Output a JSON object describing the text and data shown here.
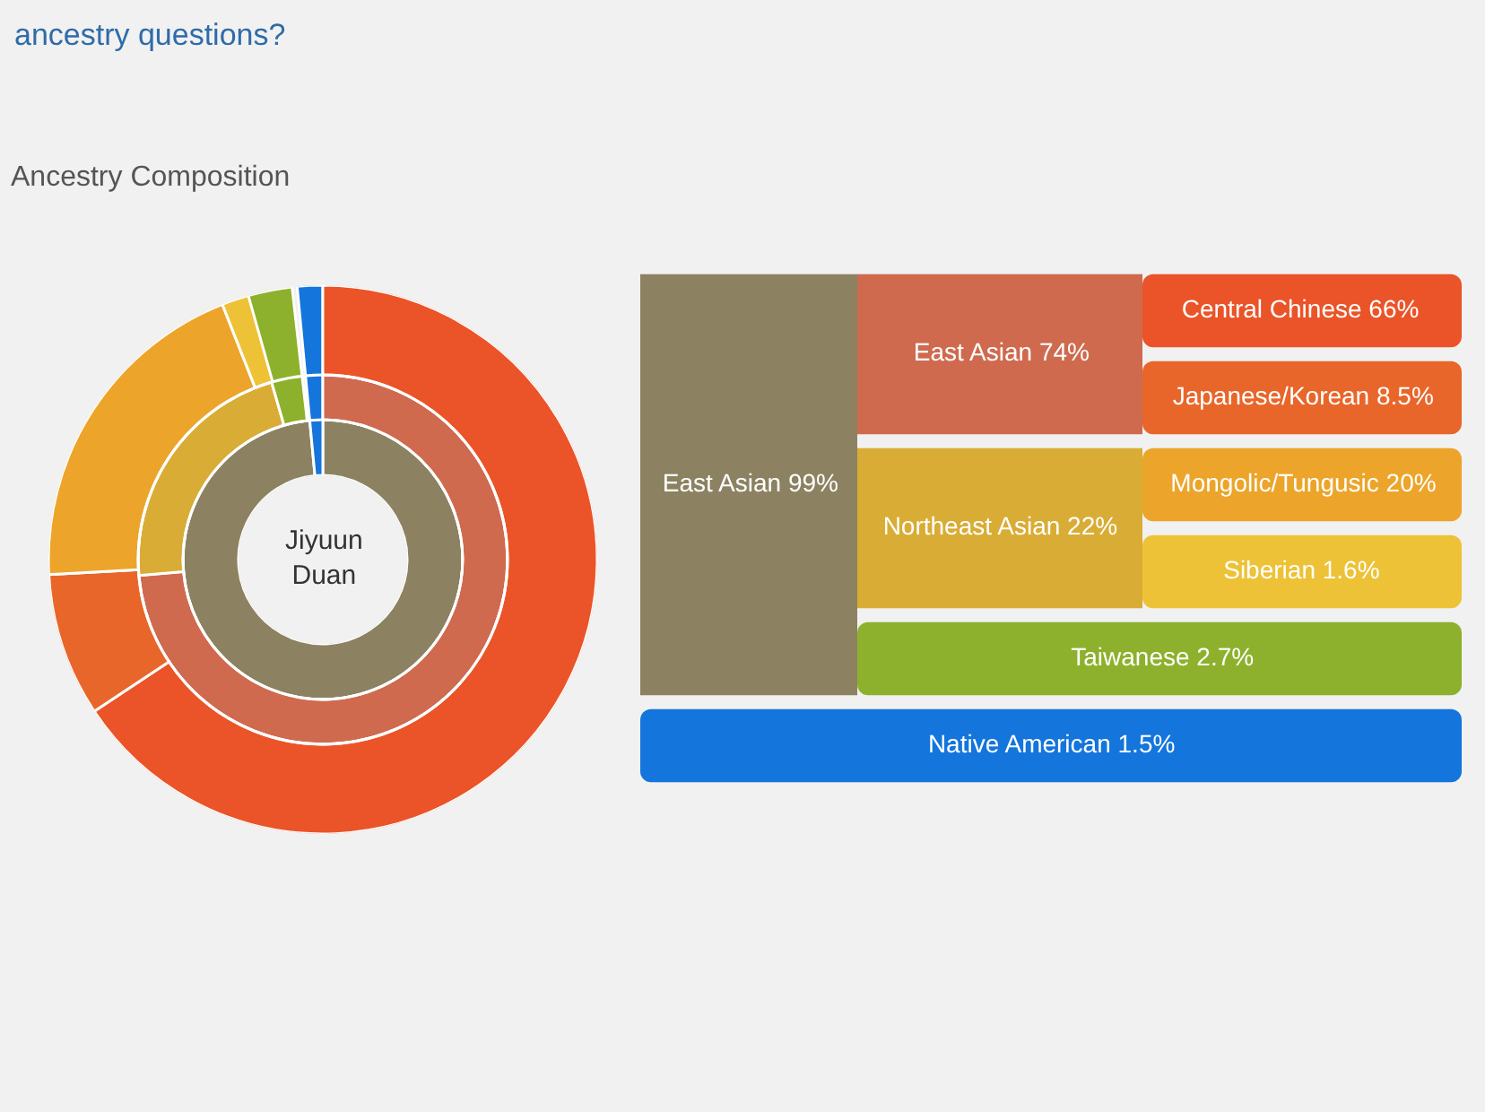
{
  "chart_data": {
    "type": "other",
    "title": "Ancestry Composition",
    "annotations": [
      "ancestry questions?",
      "Jiyuun Duan"
    ],
    "categories": [
      "East Asian",
      "East Asian",
      "Central Chinese",
      "Japanese/Korean",
      "Northeast Asian",
      "Mongolic/Tungusic",
      "Siberian",
      "Taiwanese",
      "Native American"
    ],
    "series": [
      {
        "values": [
          99,
          null,
          null,
          null,
          null,
          null,
          null,
          null,
          1.5
        ],
        "value_labels": [
          "99%",
          null,
          null,
          null,
          null,
          null,
          null,
          null,
          "1.5%"
        ],
        "colors": [
          "#8c8262",
          null,
          null,
          null,
          null,
          null,
          null,
          null,
          "#1475dc"
        ]
      },
      {
        "values": [
          null,
          74,
          null,
          null,
          22,
          null,
          null,
          2.7,
          null
        ],
        "value_labels": [
          null,
          "74%",
          null,
          null,
          "22%",
          null,
          null,
          "2.7%",
          null
        ],
        "colors": [
          null,
          "#cf6a4f",
          null,
          null,
          "#d9ac35",
          null,
          null,
          "#8db12c",
          null
        ]
      },
      {
        "values": [
          null,
          null,
          66,
          8.5,
          null,
          20,
          1.6,
          null,
          null
        ],
        "value_labels": [
          null,
          null,
          "66%",
          "8.5%",
          null,
          "20%",
          "1.6%",
          null,
          null
        ],
        "colors": [
          null,
          null,
          "#ea5428",
          "#e8662a",
          null,
          "#eca52a",
          "#edc236",
          null,
          null
        ]
      }
    ]
  }
}
